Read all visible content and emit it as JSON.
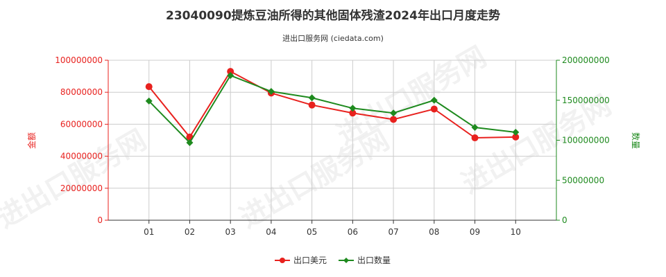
{
  "chart_data": {
    "type": "line",
    "title": "23040090提炼豆油所得的其他固体残渣2024年出口月度走势",
    "subtitle": "进出口服务网 (ciedata.com)",
    "categories": [
      "01",
      "02",
      "03",
      "04",
      "05",
      "06",
      "07",
      "08",
      "09",
      "10"
    ],
    "y_left": {
      "label": "金额",
      "range": [
        0,
        100000000
      ],
      "ticks": [
        "0",
        "20000000",
        "40000000",
        "60000000",
        "80000000",
        "100000000"
      ],
      "color": "#e8211e"
    },
    "y_right": {
      "label": "数量",
      "range": [
        0,
        200000000
      ],
      "ticks": [
        "0",
        "50000000",
        "100000000",
        "150000000",
        "200000000"
      ],
      "color": "#1e8a1e"
    },
    "series": [
      {
        "name": "出口美元",
        "axis": "left",
        "color": "#e8211e",
        "marker": "circle",
        "values": [
          83500000,
          52000000,
          93000000,
          79500000,
          72000000,
          67000000,
          63000000,
          69500000,
          51500000,
          52000000
        ]
      },
      {
        "name": "出口数量",
        "axis": "right",
        "color": "#1e8a1e",
        "marker": "diamond",
        "values": [
          149000000,
          97000000,
          181000000,
          161000000,
          153000000,
          140000000,
          134000000,
          150000000,
          116000000,
          110000000
        ]
      }
    ],
    "grid": true,
    "legend_position": "bottom-center",
    "watermark": "进出口服务网"
  }
}
